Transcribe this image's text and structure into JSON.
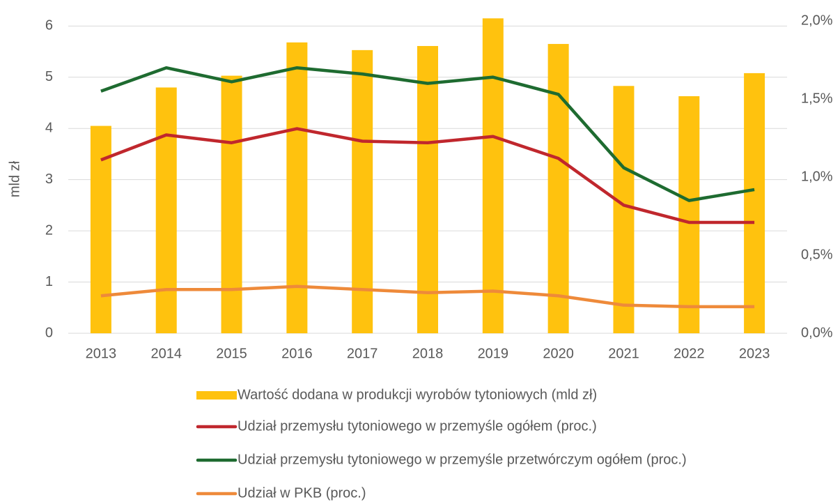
{
  "chart_data": {
    "type": "combo",
    "y_label": "mld zł",
    "categories": [
      "2013",
      "2014",
      "2015",
      "2016",
      "2017",
      "2018",
      "2019",
      "2020",
      "2021",
      "2022",
      "2023"
    ],
    "series": [
      {
        "name": "Wartość dodana w produkcji wyrobów tytoniowych (mld zł)",
        "type": "bar",
        "color": "#ffc20e",
        "axis": "y",
        "values": [
          4.05,
          4.8,
          5.03,
          5.68,
          5.53,
          5.61,
          6.15,
          5.65,
          4.83,
          4.63,
          5.08
        ]
      },
      {
        "name": "Udział przemysłu tytoniowego w przemyśle ogółem (proc.)",
        "type": "line",
        "color": "#c0272d",
        "axis": "y2",
        "values": [
          1.11,
          1.27,
          1.22,
          1.31,
          1.23,
          1.22,
          1.26,
          1.12,
          0.82,
          0.71,
          0.71
        ]
      },
      {
        "name": "Udział przemysłu tytoniowego w przemyśle przetwórczym ogółem (proc.)",
        "type": "line",
        "color": "#1e6b30",
        "axis": "y2",
        "values": [
          1.55,
          1.7,
          1.61,
          1.7,
          1.66,
          1.6,
          1.64,
          1.53,
          1.06,
          0.85,
          0.92
        ]
      },
      {
        "name": "Udział w PKB (proc.)",
        "type": "line",
        "color": "#ee8a3a",
        "axis": "y2",
        "values": [
          0.24,
          0.28,
          0.28,
          0.3,
          0.28,
          0.26,
          0.27,
          0.24,
          0.18,
          0.17,
          0.17
        ]
      }
    ],
    "ylim": [
      0,
      6.1
    ],
    "yticks": [
      0,
      1,
      2,
      3,
      4,
      5,
      6
    ],
    "y2lim": [
      0,
      2
    ],
    "y2ticks": [
      {
        "value": 0,
        "label": "0,0%"
      },
      {
        "value": 0.5,
        "label": "0,5%"
      },
      {
        "value": 1,
        "label": "1,0%"
      },
      {
        "value": 1.5,
        "label": "1,5%"
      },
      {
        "value": 2,
        "label": "2,0%"
      }
    ],
    "grid": true,
    "legend": "bottom"
  }
}
